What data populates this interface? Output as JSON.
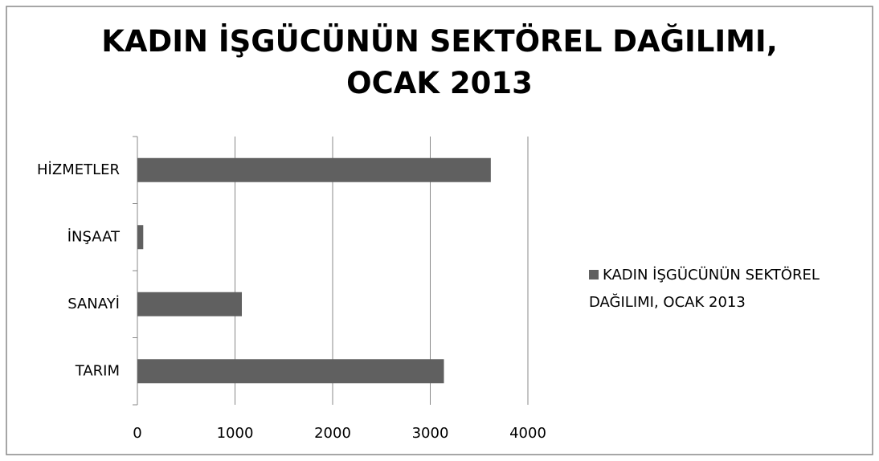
{
  "chart_data": {
    "type": "hbar",
    "title": "KADIN İŞGÜCÜNÜN SEKTÖREL DAĞILIMI, OCAK 2013",
    "categories": [
      "TARIM",
      "SANAYİ",
      "İNŞAAT",
      "HİZMETLER"
    ],
    "series": [
      {
        "name": "KADIN İŞGÜCÜNÜN SEKTÖREL DAĞILIMI, OCAK 2013",
        "color": "#606060",
        "values": [
          3140,
          1070,
          60,
          3620
        ]
      }
    ],
    "xlim": [
      0,
      4000
    ],
    "xticks": [
      0,
      1000,
      2000,
      3000,
      4000
    ],
    "grid": true,
    "legend": "right"
  }
}
